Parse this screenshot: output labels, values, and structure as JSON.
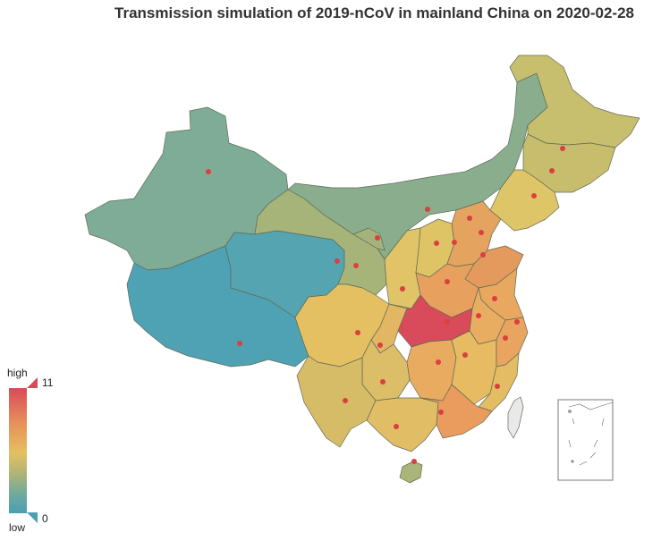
{
  "title": "Transmission simulation of 2019-nCoV in mainland China on 2020-02-28",
  "legend": {
    "high_label": "high",
    "low_label": "low",
    "max_value": "11",
    "min_value": "0",
    "colors": [
      "#d94a5a",
      "#e7905a",
      "#e4c160",
      "#a9b378",
      "#6aa9a0",
      "#4a9fb3"
    ]
  },
  "map": {
    "region": "mainland China",
    "date": "2020-02-28",
    "hotspot_color": "#d94a5a",
    "point_color": "#d94040"
  }
}
